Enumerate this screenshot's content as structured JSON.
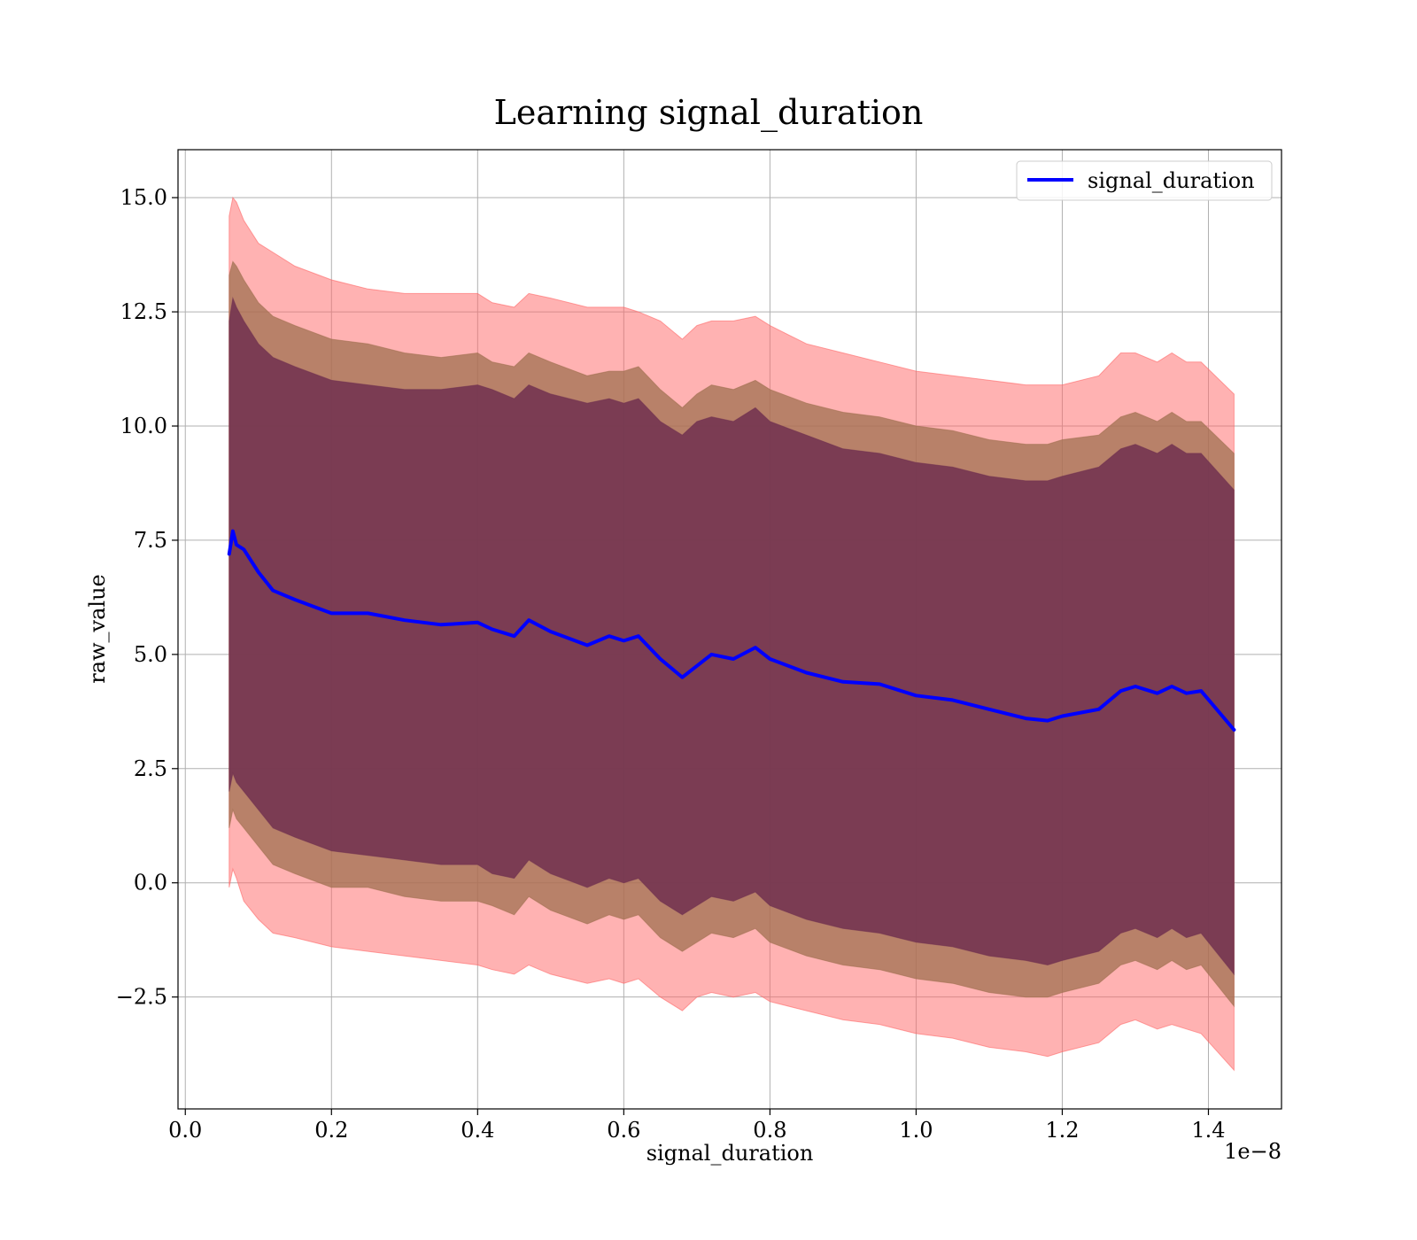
{
  "chart_data": {
    "type": "line",
    "title": "Learning signal_duration",
    "xlabel": "signal_duration",
    "ylabel": "raw_value",
    "x_offset_label": "1e−8",
    "xlim": [
      -0.01,
      1.5
    ],
    "ylim": [
      -4.95,
      16.05
    ],
    "x_ticks": [
      0.0,
      0.2,
      0.4,
      0.6,
      0.8,
      1.0,
      1.2,
      1.4
    ],
    "x_tick_labels": [
      "0.0",
      "0.2",
      "0.4",
      "0.6",
      "0.8",
      "1.0",
      "1.2",
      "1.4"
    ],
    "y_ticks": [
      -2.5,
      0.0,
      2.5,
      5.0,
      7.5,
      10.0,
      12.5,
      15.0
    ],
    "y_tick_labels": [
      "−2.5",
      "0.0",
      "2.5",
      "5.0",
      "7.5",
      "10.0",
      "12.5",
      "15.0"
    ],
    "grid": true,
    "legend_position": "top-right",
    "colors": {
      "line": "#0000ff",
      "band_outer": "#ff6666",
      "band_middle": "#a07050",
      "band_inner": "#703050"
    },
    "x": [
      0.06,
      0.065,
      0.07,
      0.08,
      0.1,
      0.12,
      0.15,
      0.2,
      0.25,
      0.3,
      0.35,
      0.4,
      0.42,
      0.45,
      0.47,
      0.5,
      0.55,
      0.58,
      0.6,
      0.62,
      0.65,
      0.68,
      0.7,
      0.72,
      0.75,
      0.78,
      0.8,
      0.85,
      0.9,
      0.95,
      1.0,
      1.05,
      1.1,
      1.15,
      1.18,
      1.2,
      1.25,
      1.28,
      1.3,
      1.33,
      1.35,
      1.37,
      1.39,
      1.435
    ],
    "series": [
      {
        "name": "signal_duration",
        "values": [
          7.2,
          7.7,
          7.4,
          7.3,
          6.8,
          6.4,
          6.2,
          5.9,
          5.9,
          5.75,
          5.65,
          5.7,
          5.55,
          5.4,
          5.75,
          5.5,
          5.2,
          5.4,
          5.3,
          5.4,
          4.9,
          4.5,
          4.75,
          5.0,
          4.9,
          5.15,
          4.9,
          4.6,
          4.4,
          4.35,
          4.1,
          4.0,
          3.8,
          3.6,
          3.55,
          3.65,
          3.8,
          4.2,
          4.3,
          4.15,
          4.3,
          4.15,
          4.2,
          3.35
        ]
      }
    ],
    "bands": [
      {
        "upper": [
          14.6,
          15.0,
          14.9,
          14.5,
          14.0,
          13.8,
          13.5,
          13.2,
          13.0,
          12.9,
          12.9,
          12.9,
          12.7,
          12.6,
          12.9,
          12.8,
          12.6,
          12.6,
          12.6,
          12.5,
          12.3,
          11.9,
          12.2,
          12.3,
          12.3,
          12.4,
          12.2,
          11.8,
          11.6,
          11.4,
          11.2,
          11.1,
          11.0,
          10.9,
          10.9,
          10.9,
          11.1,
          11.6,
          11.6,
          11.4,
          11.6,
          11.4,
          11.4,
          10.7
        ],
        "lower": [
          -0.1,
          0.3,
          0.1,
          -0.4,
          -0.8,
          -1.1,
          -1.2,
          -1.4,
          -1.5,
          -1.6,
          -1.7,
          -1.8,
          -1.9,
          -2.0,
          -1.8,
          -2.0,
          -2.2,
          -2.1,
          -2.2,
          -2.1,
          -2.5,
          -2.8,
          -2.5,
          -2.4,
          -2.5,
          -2.4,
          -2.6,
          -2.8,
          -3.0,
          -3.1,
          -3.3,
          -3.4,
          -3.6,
          -3.7,
          -3.8,
          -3.7,
          -3.5,
          -3.1,
          -3.0,
          -3.2,
          -3.1,
          -3.2,
          -3.3,
          -4.1
        ]
      },
      {
        "upper": [
          13.3,
          13.6,
          13.5,
          13.2,
          12.7,
          12.4,
          12.2,
          11.9,
          11.8,
          11.6,
          11.5,
          11.6,
          11.4,
          11.3,
          11.6,
          11.4,
          11.1,
          11.2,
          11.2,
          11.3,
          10.8,
          10.4,
          10.7,
          10.9,
          10.8,
          11.0,
          10.8,
          10.5,
          10.3,
          10.2,
          10.0,
          9.9,
          9.7,
          9.6,
          9.6,
          9.7,
          9.8,
          10.2,
          10.3,
          10.1,
          10.3,
          10.1,
          10.1,
          9.4
        ],
        "lower": [
          1.2,
          1.6,
          1.4,
          1.2,
          0.8,
          0.4,
          0.2,
          -0.1,
          -0.1,
          -0.3,
          -0.4,
          -0.4,
          -0.5,
          -0.7,
          -0.3,
          -0.6,
          -0.9,
          -0.7,
          -0.8,
          -0.7,
          -1.2,
          -1.5,
          -1.3,
          -1.1,
          -1.2,
          -1.0,
          -1.3,
          -1.6,
          -1.8,
          -1.9,
          -2.1,
          -2.2,
          -2.4,
          -2.5,
          -2.5,
          -2.4,
          -2.2,
          -1.8,
          -1.7,
          -1.9,
          -1.7,
          -1.9,
          -1.8,
          -2.7
        ]
      },
      {
        "upper": [
          12.3,
          12.8,
          12.6,
          12.3,
          11.8,
          11.5,
          11.3,
          11.0,
          10.9,
          10.8,
          10.8,
          10.9,
          10.8,
          10.6,
          10.9,
          10.7,
          10.5,
          10.6,
          10.5,
          10.6,
          10.1,
          9.8,
          10.1,
          10.2,
          10.1,
          10.4,
          10.1,
          9.8,
          9.5,
          9.4,
          9.2,
          9.1,
          8.9,
          8.8,
          8.8,
          8.9,
          9.1,
          9.5,
          9.6,
          9.4,
          9.6,
          9.4,
          9.4,
          8.6
        ],
        "lower": [
          2.0,
          2.4,
          2.2,
          2.0,
          1.6,
          1.2,
          1.0,
          0.7,
          0.6,
          0.5,
          0.4,
          0.4,
          0.2,
          0.1,
          0.5,
          0.2,
          -0.1,
          0.1,
          0.0,
          0.1,
          -0.4,
          -0.7,
          -0.5,
          -0.3,
          -0.4,
          -0.2,
          -0.5,
          -0.8,
          -1.0,
          -1.1,
          -1.3,
          -1.4,
          -1.6,
          -1.7,
          -1.8,
          -1.7,
          -1.5,
          -1.1,
          -1.0,
          -1.2,
          -1.0,
          -1.2,
          -1.1,
          -2.0
        ]
      }
    ]
  }
}
